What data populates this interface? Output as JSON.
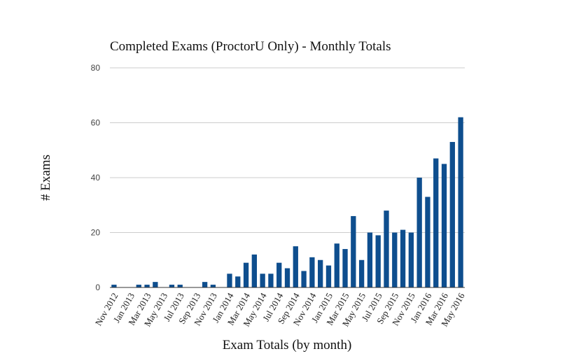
{
  "chart_data": {
    "type": "bar",
    "title": "Completed Exams (ProctorU Only) - Monthly Totals",
    "xlabel": "Exam Totals (by month)",
    "ylabel": "# Exams",
    "ylim": [
      0,
      80
    ],
    "yticks": [
      0,
      20,
      40,
      60,
      80
    ],
    "grid": true,
    "legend": "none",
    "bar_color": "#0e4e8e",
    "categories": [
      "Nov 2012",
      "Dec 2012",
      "Jan 2013",
      "Feb 2013",
      "Mar 2013",
      "Apr 2013",
      "May 2013",
      "Jun 2013",
      "Jul 2013",
      "Aug 2013",
      "Sep 2013",
      "Oct 2013",
      "Nov 2013",
      "Dec 2013",
      "Jan 2014",
      "Feb 2014",
      "Mar 2014",
      "Apr 2014",
      "May 2014",
      "Jun 2014",
      "Jul 2014",
      "Aug 2014",
      "Sep 2014",
      "Oct 2014",
      "Nov 2014",
      "Dec 2014",
      "Jan 2015",
      "Feb 2015",
      "Mar 2015",
      "Apr 2015",
      "May 2015",
      "Jun 2015",
      "Jul 2015",
      "Aug 2015",
      "Sep 2015",
      "Oct 2015",
      "Nov 2015",
      "Dec 2015",
      "Jan 2016",
      "Feb 2016",
      "Mar 2016",
      "Apr 2016",
      "May 2016"
    ],
    "tick_labels": [
      "Nov 2012",
      "Jan 2013",
      "Mar 2013",
      "May 2013",
      "Jul 2013",
      "Sep 2013",
      "Nov 2013",
      "Jan 2014",
      "Mar 2014",
      "May 2014",
      "Jul 2014",
      "Sep 2014",
      "Nov 2014",
      "Jan 2015",
      "Mar 2015",
      "May 2015",
      "Jul 2015",
      "Sep 2015",
      "Nov 2015",
      "Jan 2016",
      "Mar 2016",
      "May 2016"
    ],
    "values": [
      1,
      0,
      0,
      1,
      1,
      2,
      0,
      1,
      1,
      0,
      0,
      2,
      1,
      0,
      5,
      4,
      9,
      12,
      5,
      5,
      9,
      7,
      15,
      6,
      11,
      10,
      8,
      16,
      14,
      26,
      10,
      20,
      19,
      28,
      20,
      21,
      20,
      40,
      33,
      47,
      45,
      53,
      62
    ]
  }
}
